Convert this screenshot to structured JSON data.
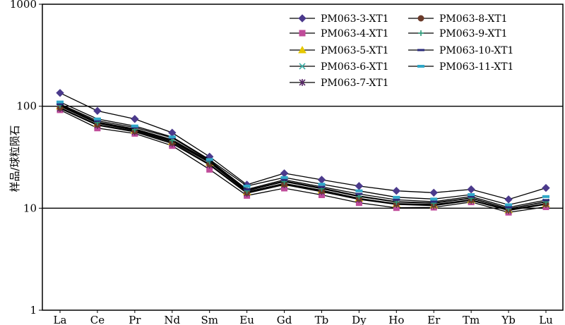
{
  "chart_data": {
    "type": "line",
    "title": "",
    "xlabel": "",
    "ylabel": "样品/球粒陨石",
    "yscale": "log",
    "ylim": [
      1,
      1000
    ],
    "y_ticks": [
      "1",
      "10",
      "100",
      "1000"
    ],
    "categories": [
      "La",
      "Ce",
      "Pr",
      "Nd",
      "Sm",
      "Eu",
      "Gd",
      "Tb",
      "Dy",
      "Ho",
      "Er",
      "Tm",
      "Yb",
      "Lu"
    ],
    "legend_position": "top-right",
    "series": [
      {
        "name": "PM063-3-XT1",
        "color": "#4b3a8c",
        "marker": "diamond",
        "values": [
          135,
          90,
          75,
          55,
          32,
          17,
          22,
          19,
          16.5,
          14.8,
          14.2,
          15.3,
          12.2,
          15.8
        ]
      },
      {
        "name": "PM063-4-XT1",
        "color": "#c04c9a",
        "marker": "square",
        "values": [
          92,
          61,
          54,
          41,
          24,
          13.3,
          15.7,
          13.5,
          11.3,
          10.1,
          10.2,
          11.5,
          9.1,
          10.3
        ]
      },
      {
        "name": "PM063-5-XT1",
        "color": "#e6c800",
        "marker": "triangle",
        "values": [
          100,
          68,
          58,
          45,
          28,
          14.5,
          17.5,
          15,
          12.5,
          11,
          10.7,
          12,
          9.6,
          11
        ]
      },
      {
        "name": "PM063-6-XT1",
        "color": "#40b0a8",
        "marker": "x",
        "values": [
          103,
          70,
          60,
          47,
          29,
          15,
          18.5,
          15.8,
          13.2,
          11.6,
          11.3,
          12.6,
          9.9,
          11.6
        ]
      },
      {
        "name": "PM063-7-XT1",
        "color": "#5a2a6a",
        "marker": "star",
        "values": [
          95,
          65,
          56,
          43,
          26.5,
          14,
          17,
          14.5,
          12.2,
          10.9,
          10.6,
          11.9,
          9.5,
          10.9
        ]
      },
      {
        "name": "PM063-8-XT1",
        "color": "#6b3a2a",
        "marker": "circle",
        "values": [
          97,
          66,
          57,
          44,
          27,
          14.2,
          17.2,
          14.8,
          12.4,
          11.1,
          10.9,
          12.1,
          9.7,
          11.1
        ]
      },
      {
        "name": "PM063-9-XT1",
        "color": "#2a9a7a",
        "marker": "plus",
        "values": [
          102,
          69,
          59,
          46,
          28.5,
          14.8,
          18.2,
          15.5,
          13,
          11.5,
          11.2,
          12.5,
          9.9,
          11.5
        ]
      },
      {
        "name": "PM063-10-XT1",
        "color": "#2a2a7a",
        "marker": "dash",
        "values": [
          105,
          72,
          62,
          49,
          29.5,
          15.3,
          19,
          16.2,
          13.8,
          12.1,
          11.6,
          13,
          10.2,
          12
        ]
      },
      {
        "name": "PM063-11-XT1",
        "color": "#30a8c8",
        "marker": "bar",
        "values": [
          110,
          75,
          64,
          50,
          30,
          16.5,
          20,
          17.2,
          14.8,
          12.8,
          12.3,
          13.6,
          10.8,
          13
        ]
      }
    ]
  }
}
